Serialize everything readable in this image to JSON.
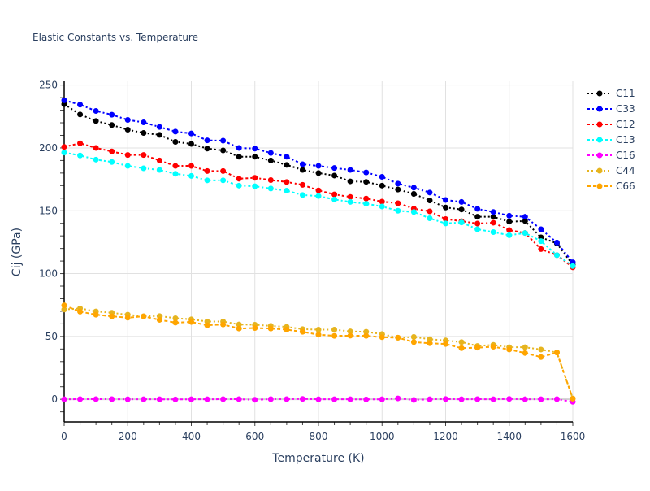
{
  "chart_data": {
    "type": "line",
    "title": "Elastic Constants vs. Temperature",
    "xlabel": "Temperature (K)",
    "ylabel": "Cij (GPa)",
    "xlim": [
      0,
      1600
    ],
    "ylim": [
      -18,
      253
    ],
    "x_ticks": [
      0,
      200,
      400,
      600,
      800,
      1000,
      1200,
      1400,
      1600
    ],
    "x_tick_labels": [
      "0",
      "200",
      "400",
      "600",
      "800",
      "1000",
      "1200",
      "1400",
      "1600"
    ],
    "y_ticks": [
      0,
      50,
      100,
      150,
      200,
      250
    ],
    "y_tick_labels": [
      "0",
      "50",
      "100",
      "150",
      "200",
      "250"
    ],
    "grid": true,
    "legend_position": "top-right",
    "x": [
      0,
      50,
      100,
      150,
      200,
      250,
      300,
      350,
      400,
      450,
      500,
      550,
      600,
      650,
      700,
      750,
      800,
      850,
      900,
      950,
      1000,
      1050,
      1100,
      1150,
      1200,
      1250,
      1300,
      1350,
      1400,
      1450,
      1500,
      1550,
      1600
    ],
    "series": [
      {
        "name": "C11",
        "color": "#000000",
        "dash": "dot",
        "values": [
          234.8,
          226.6,
          221.4,
          218.2,
          214.5,
          211.9,
          210.4,
          204.8,
          203.2,
          199.5,
          198.0,
          193.0,
          193.0,
          190.0,
          186.5,
          182.5,
          180.0,
          178.0,
          173.4,
          173.0,
          170.0,
          166.9,
          163.4,
          158.2,
          152.6,
          151.0,
          145.2,
          145.2,
          141.3,
          141.8,
          128.8,
          124.0,
          107.0
        ]
      },
      {
        "name": "C33",
        "color": "#0000ff",
        "dash": "dashdot",
        "values": [
          237.9,
          234.4,
          229.4,
          226.4,
          222.3,
          220.3,
          216.7,
          213.0,
          211.5,
          206.0,
          205.8,
          200.0,
          199.5,
          196.0,
          193.0,
          187.0,
          185.7,
          184.0,
          182.5,
          180.5,
          177.0,
          171.6,
          168.4,
          164.5,
          158.6,
          157.0,
          151.5,
          149.0,
          146.0,
          145.2,
          135.3,
          124.7,
          109.0
        ]
      },
      {
        "name": "C12",
        "color": "#ff0000",
        "dash": "dashdot",
        "values": [
          200.8,
          203.7,
          200.0,
          197.2,
          194.4,
          194.4,
          190.0,
          185.7,
          185.7,
          181.6,
          181.6,
          175.5,
          176.2,
          174.4,
          172.9,
          170.6,
          166.2,
          163.0,
          161.0,
          159.7,
          157.3,
          156.0,
          151.7,
          149.5,
          143.4,
          141.7,
          139.8,
          140.5,
          134.6,
          132.3,
          119.5,
          114.7,
          105.0
        ]
      },
      {
        "name": "C13",
        "color": "#00ffff",
        "dash": "dashdot",
        "values": [
          196.3,
          194.0,
          190.7,
          188.8,
          185.7,
          183.8,
          182.5,
          179.4,
          177.7,
          174.2,
          174.2,
          170.0,
          169.5,
          167.7,
          166.0,
          162.5,
          161.7,
          159.0,
          157.0,
          155.6,
          153.4,
          150.0,
          149.0,
          144.0,
          139.9,
          140.7,
          135.3,
          133.0,
          130.5,
          132.3,
          125.8,
          114.7,
          106.0
        ]
      },
      {
        "name": "C16",
        "color": "#ff00ff",
        "dash": "dashdot",
        "values": [
          0.0,
          0.1,
          0.1,
          0.1,
          0.0,
          0.0,
          0.0,
          -0.1,
          0.0,
          0.0,
          0.1,
          0.1,
          -0.4,
          0.1,
          0.1,
          0.3,
          0.0,
          0.0,
          0.0,
          -0.1,
          0.0,
          0.7,
          -0.5,
          0.0,
          0.2,
          0.0,
          0.1,
          0.0,
          0.3,
          0.0,
          0.0,
          0.1,
          -2.0
        ]
      },
      {
        "name": "C44",
        "color": "#e6b41e",
        "dash": "dot",
        "values": [
          71.4,
          72.3,
          69.9,
          68.8,
          67.3,
          66.0,
          66.2,
          64.5,
          63.6,
          61.9,
          61.9,
          59.5,
          59.3,
          58.4,
          57.6,
          55.8,
          55.4,
          55.4,
          54.0,
          53.7,
          51.9,
          49.0,
          49.6,
          47.8,
          46.8,
          45.5,
          42.4,
          43.3,
          41.4,
          41.4,
          39.6,
          37.2,
          0.6
        ]
      },
      {
        "name": "C66",
        "color": "#ffa500",
        "dash": "dash",
        "values": [
          74.7,
          69.7,
          67.3,
          66.0,
          64.9,
          66.0,
          63.2,
          61.0,
          61.5,
          58.9,
          59.5,
          56.3,
          56.7,
          56.3,
          55.4,
          53.7,
          51.4,
          50.5,
          50.6,
          50.5,
          49.4,
          49.0,
          45.5,
          44.6,
          44.0,
          40.7,
          41.1,
          41.8,
          39.6,
          36.8,
          33.6,
          37.2,
          0.5
        ]
      }
    ]
  }
}
